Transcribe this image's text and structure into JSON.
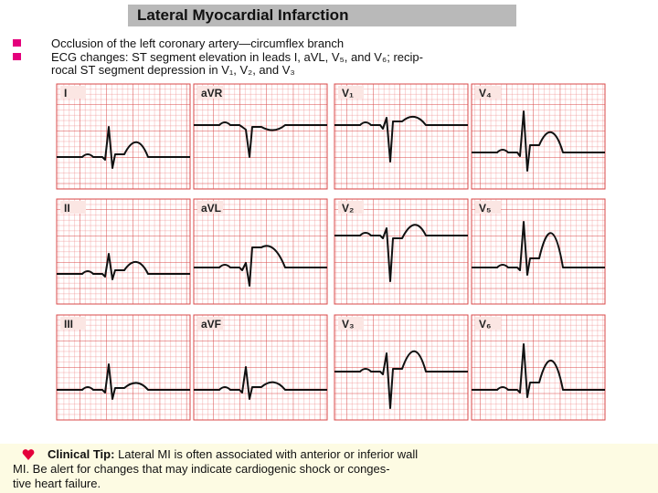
{
  "header": {
    "title": "Lateral Myocardial Infarction"
  },
  "bullets": [
    {
      "lines": [
        "Occlusion of the left coronary artery—circumflex branch"
      ]
    },
    {
      "lines": [
        "ECG changes: ST segment elevation in leads I, aVL, V₅, and V₆; recip-",
        "rocal ST segment depression in V₁, V₂, and V₃"
      ]
    }
  ],
  "panels": [
    {
      "label": "I"
    },
    {
      "label": "aVR"
    },
    {
      "label": "V₁"
    },
    {
      "label": "V₄"
    },
    {
      "label": "II"
    },
    {
      "label": "aVL"
    },
    {
      "label": "V₂"
    },
    {
      "label": "V₅"
    },
    {
      "label": "III"
    },
    {
      "label": "aVF"
    },
    {
      "label": "V₃"
    },
    {
      "label": "V₆"
    }
  ],
  "clinical_tip": {
    "heading": "Clinical Tip:",
    "lines": [
      "Lateral MI is often associated with anterior or inferior wall",
      "MI. Be alert for changes that may indicate cardiogenic shock or conges-",
      "tive heart failure."
    ]
  }
}
